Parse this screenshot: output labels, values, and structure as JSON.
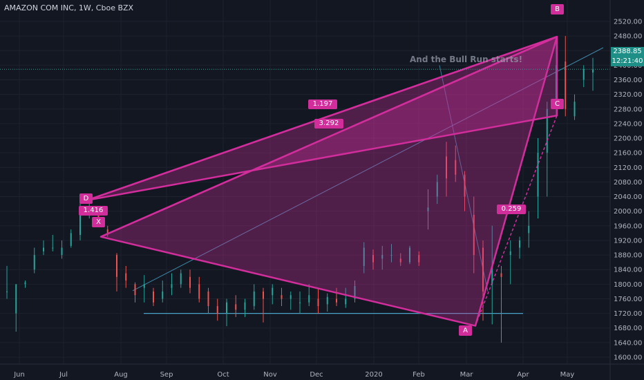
{
  "header": {
    "title": "AMAZON COM INC, 1W, Cboe BZX"
  },
  "annotation": {
    "text": "And the Bull Run starts!"
  },
  "price_readout": {
    "last_price": "2388.85",
    "countdown": "12:21:40"
  },
  "chart_data": {
    "type": "candlestick",
    "symbol": "AMZN",
    "interval": "1W",
    "exchange": "Cboe BZX",
    "ylim": [
      1580,
      2540
    ],
    "y_ticks": [
      1600,
      1640,
      1680,
      1720,
      1760,
      1800,
      1840,
      1880,
      1920,
      1960,
      2000,
      2040,
      2080,
      2120,
      2160,
      2200,
      2240,
      2280,
      2320,
      2360,
      2400,
      2440,
      2480,
      2520
    ],
    "x_tick_labels": [
      "Jun",
      "Jul",
      "Aug",
      "Sep",
      "Oct",
      "Nov",
      "Dec",
      "2020",
      "Feb",
      "Mar",
      "Apr",
      "May"
    ],
    "candles": [
      {
        "o": 1780,
        "h": 1850,
        "l": 1760,
        "c": 1780
      },
      {
        "o": 1720,
        "h": 1800,
        "l": 1670,
        "c": 1800
      },
      {
        "o": 1800,
        "h": 1810,
        "l": 1790,
        "c": 1805
      },
      {
        "o": 1840,
        "h": 1900,
        "l": 1830,
        "c": 1880
      },
      {
        "o": 1890,
        "h": 1920,
        "l": 1880,
        "c": 1900
      },
      {
        "o": 1900,
        "h": 1935,
        "l": 1890,
        "c": 1900
      },
      {
        "o": 1880,
        "h": 1920,
        "l": 1870,
        "c": 1900
      },
      {
        "o": 1905,
        "h": 1950,
        "l": 1900,
        "c": 1940
      },
      {
        "o": 1935,
        "h": 2040,
        "l": 1920,
        "c": 1995
      },
      {
        "o": 2000,
        "h": 2030,
        "l": 1980,
        "c": 2000
      },
      {
        "o": 2000,
        "h": 2010,
        "l": 1960,
        "c": 1975
      },
      {
        "o": 1950,
        "h": 1960,
        "l": 1930,
        "c": 1940
      },
      {
        "o": 1880,
        "h": 1885,
        "l": 1780,
        "c": 1820
      },
      {
        "o": 1830,
        "h": 1850,
        "l": 1790,
        "c": 1810
      },
      {
        "o": 1800,
        "h": 1805,
        "l": 1750,
        "c": 1770
      },
      {
        "o": 1790,
        "h": 1825,
        "l": 1750,
        "c": 1800
      },
      {
        "o": 1780,
        "h": 1790,
        "l": 1740,
        "c": 1750
      },
      {
        "o": 1760,
        "h": 1810,
        "l": 1750,
        "c": 1780
      },
      {
        "o": 1790,
        "h": 1830,
        "l": 1770,
        "c": 1800
      },
      {
        "o": 1800,
        "h": 1840,
        "l": 1790,
        "c": 1830
      },
      {
        "o": 1820,
        "h": 1840,
        "l": 1775,
        "c": 1790
      },
      {
        "o": 1800,
        "h": 1820,
        "l": 1750,
        "c": 1760
      },
      {
        "o": 1780,
        "h": 1790,
        "l": 1720,
        "c": 1740
      },
      {
        "o": 1740,
        "h": 1760,
        "l": 1700,
        "c": 1720
      },
      {
        "o": 1720,
        "h": 1760,
        "l": 1685,
        "c": 1750
      },
      {
        "o": 1745,
        "h": 1770,
        "l": 1710,
        "c": 1730
      },
      {
        "o": 1730,
        "h": 1760,
        "l": 1710,
        "c": 1750
      },
      {
        "o": 1740,
        "h": 1800,
        "l": 1730,
        "c": 1780
      },
      {
        "o": 1780,
        "h": 1790,
        "l": 1695,
        "c": 1760
      },
      {
        "o": 1770,
        "h": 1800,
        "l": 1745,
        "c": 1790
      },
      {
        "o": 1770,
        "h": 1790,
        "l": 1740,
        "c": 1760
      },
      {
        "o": 1760,
        "h": 1780,
        "l": 1730,
        "c": 1770
      },
      {
        "o": 1750,
        "h": 1780,
        "l": 1720,
        "c": 1750
      },
      {
        "o": 1750,
        "h": 1800,
        "l": 1740,
        "c": 1770
      },
      {
        "o": 1760,
        "h": 1790,
        "l": 1720,
        "c": 1740
      },
      {
        "o": 1745,
        "h": 1775,
        "l": 1725,
        "c": 1765
      },
      {
        "o": 1760,
        "h": 1790,
        "l": 1740,
        "c": 1750
      },
      {
        "o": 1745,
        "h": 1790,
        "l": 1735,
        "c": 1760
      },
      {
        "o": 1760,
        "h": 1810,
        "l": 1750,
        "c": 1795
      },
      {
        "o": 1850,
        "h": 1915,
        "l": 1830,
        "c": 1900
      },
      {
        "o": 1880,
        "h": 1895,
        "l": 1840,
        "c": 1860
      },
      {
        "o": 1870,
        "h": 1905,
        "l": 1840,
        "c": 1880
      },
      {
        "o": 1880,
        "h": 1910,
        "l": 1860,
        "c": 1880
      },
      {
        "o": 1870,
        "h": 1885,
        "l": 1850,
        "c": 1860
      },
      {
        "o": 1860,
        "h": 1905,
        "l": 1855,
        "c": 1900
      },
      {
        "o": 1880,
        "h": 1890,
        "l": 1850,
        "c": 1860
      },
      {
        "o": 2000,
        "h": 2060,
        "l": 1950,
        "c": 2010
      },
      {
        "o": 2040,
        "h": 2100,
        "l": 2020,
        "c": 2080
      },
      {
        "o": 2150,
        "h": 2190,
        "l": 2040,
        "c": 2090
      },
      {
        "o": 2140,
        "h": 2180,
        "l": 2080,
        "c": 2100
      },
      {
        "o": 2100,
        "h": 2110,
        "l": 2000,
        "c": 2040
      },
      {
        "o": 1990,
        "h": 2040,
        "l": 1830,
        "c": 1880
      },
      {
        "o": 1900,
        "h": 1920,
        "l": 1700,
        "c": 1780
      },
      {
        "o": 1800,
        "h": 1960,
        "l": 1690,
        "c": 1850
      },
      {
        "o": 1830,
        "h": 1850,
        "l": 1640,
        "c": 1820
      },
      {
        "o": 1880,
        "h": 1920,
        "l": 1800,
        "c": 1890
      },
      {
        "o": 1900,
        "h": 1930,
        "l": 1870,
        "c": 1920
      },
      {
        "o": 1940,
        "h": 2000,
        "l": 1900,
        "c": 1960
      },
      {
        "o": 2040,
        "h": 2200,
        "l": 1980,
        "c": 2160
      },
      {
        "o": 2160,
        "h": 2300,
        "l": 2040,
        "c": 2280
      },
      {
        "o": 2300,
        "h": 2460,
        "l": 2260,
        "c": 2400
      },
      {
        "o": 2410,
        "h": 2480,
        "l": 2260,
        "c": 2280
      },
      {
        "o": 2260,
        "h": 2320,
        "l": 2250,
        "c": 2300
      },
      {
        "o": 2360,
        "h": 2400,
        "l": 2340,
        "c": 2388.85
      },
      {
        "o": 2380,
        "h": 2420,
        "l": 2330,
        "c": 2388.85
      }
    ],
    "pattern": {
      "points": [
        {
          "label": "X",
          "price": 1930
        },
        {
          "label": "A",
          "price": 1686
        },
        {
          "label": "B",
          "price": 2478
        },
        {
          "label": "C",
          "price": 2262
        },
        {
          "label": "D",
          "price": 2030
        }
      ],
      "ratios": [
        "1.197",
        "3.292",
        "1.416",
        "0.259"
      ],
      "color": "#d12e9c"
    },
    "support_level": 1720,
    "last_price": 2388.85,
    "colors": {
      "up": "#26a69a",
      "down": "#ef5350",
      "pattern": "#d12e9c",
      "line": "#4aa3c8"
    }
  }
}
